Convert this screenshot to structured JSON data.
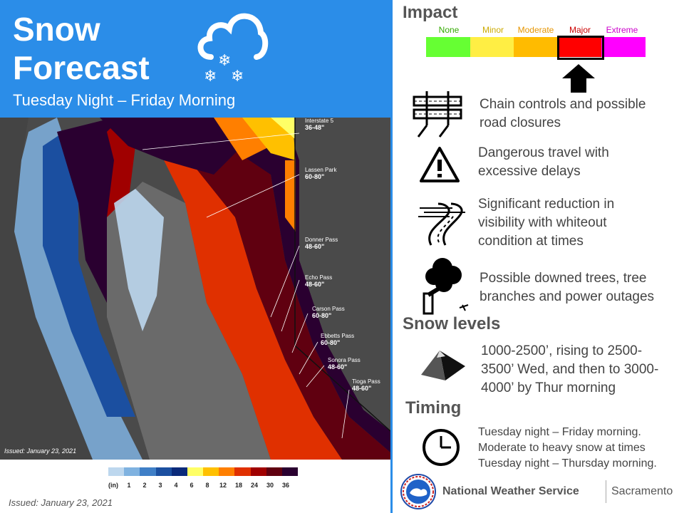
{
  "header": {
    "title_line1": "Snow",
    "title_line2": "Forecast",
    "subtitle": "Tuesday Night – Friday Morning",
    "icon": "snow-cloud-icon"
  },
  "map": {
    "issued_overlay": "Issued: January 23, 2021",
    "locations": [
      {
        "name": "Interstate 5",
        "value": "36-48\""
      },
      {
        "name": "Lassen Park",
        "value": "60-80\""
      },
      {
        "name": "Donner Pass",
        "value": "48-60\""
      },
      {
        "name": "Echo Pass",
        "value": "48-60\""
      },
      {
        "name": "Carson Pass",
        "value": "60-80\""
      },
      {
        "name": "Ebbetts Pass",
        "value": "60-80\""
      },
      {
        "name": "Sonora Pass",
        "value": "48-60\""
      },
      {
        "name": "Tioga Pass",
        "value": "48-60\""
      }
    ]
  },
  "legend": {
    "unit": "(in)",
    "labels": [
      "1",
      "2",
      "3",
      "4",
      "6",
      "8",
      "12",
      "18",
      "24",
      "30",
      "36"
    ],
    "colors": [
      "#bdd7ee",
      "#7fb2e0",
      "#3f7fc7",
      "#1b4fa0",
      "#0a2a7a",
      "#ffff66",
      "#ffc000",
      "#ff7f00",
      "#e03000",
      "#a00000",
      "#600010",
      "#2a0030"
    ]
  },
  "issued": "Issued: January 23, 2021",
  "impact": {
    "heading": "Impact",
    "levels": [
      {
        "label": "None",
        "color": "#66ff33",
        "text_color": "#33aa00"
      },
      {
        "label": "Minor",
        "color": "#ffee44",
        "text_color": "#ccaa00"
      },
      {
        "label": "Moderate",
        "color": "#ffbb00",
        "text_color": "#e69500"
      },
      {
        "label": "Major",
        "color": "#ff0000",
        "text_color": "#cc0000"
      },
      {
        "label": "Extreme",
        "color": "#ff00ff",
        "text_color": "#cc00cc"
      }
    ],
    "selected": "Major",
    "items": [
      {
        "icon": "road-closure-icon",
        "lines": [
          "Chain controls and possible",
          "road closures"
        ]
      },
      {
        "icon": "warning-icon",
        "lines": [
          "Dangerous travel with",
          "excessive delays"
        ]
      },
      {
        "icon": "whiteout-road-icon",
        "lines": [
          "Significant reduction in",
          "visibility with whiteout",
          "condition at times"
        ]
      },
      {
        "icon": "downed-tree-icon",
        "lines": [
          "Possible downed trees, tree",
          "branches and power outages"
        ]
      }
    ]
  },
  "snow_levels": {
    "heading": "Snow levels",
    "icon": "mountain-icon",
    "lines": [
      "1000-2500’,  rising to 2500-",
      "3500’ Wed, and then to 3000-",
      "4000’ by Thur morning"
    ]
  },
  "timing": {
    "heading": "Timing",
    "icon": "clock-icon",
    "lines": [
      "Tuesday night – Friday morning.",
      "Moderate to heavy snow at times",
      "Tuesday night – Thursday morning."
    ]
  },
  "footer": {
    "logo_icon": "nws-logo-icon",
    "agency": "National Weather Service",
    "office": "Sacramento"
  }
}
